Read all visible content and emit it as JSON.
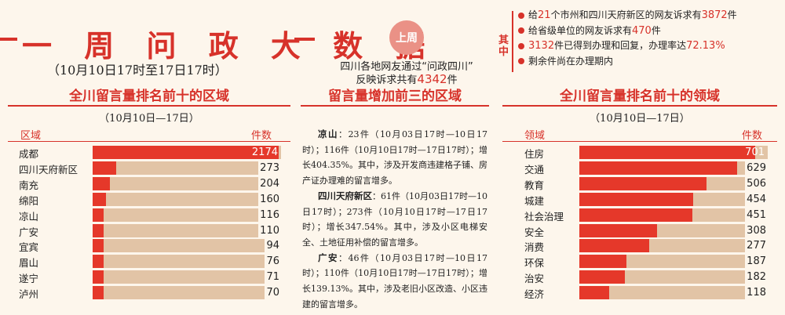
{
  "header": {
    "title": "一 周 问 政 大 数 据",
    "period": "（10月10日17时至17日17时）",
    "badge": "上周",
    "summary_line1": "四川各地网友通过“问政四川”",
    "summary_prefix": "反映诉求共有",
    "summary_total": "4342",
    "summary_suffix": "件",
    "qizhong": "其中",
    "bullets": [
      {
        "pre": "给",
        "num": "21",
        "mid": "个市州和四川天府新区的网友诉求有",
        "num2": "3872",
        "post": "件"
      },
      {
        "pre": "给省级单位的网友诉求有",
        "num": "470",
        "mid": "件",
        "num2": "",
        "post": ""
      },
      {
        "pre": "",
        "num": "3132",
        "mid": "件已得到办理和回复，办理率达",
        "num2": "72.13%",
        "post": ""
      },
      {
        "pre": "剩余件尚在办理期内",
        "num": "",
        "mid": "",
        "num2": "",
        "post": ""
      }
    ]
  },
  "left_panel": {
    "title": "全川留言量排名前十的区域",
    "date": "（10月10日—17日）",
    "col_label": "区域",
    "col_value": "件数"
  },
  "middle_panel": {
    "title": "留言量增加前三的区域",
    "paragraphs": [
      {
        "place": "凉山",
        "text": "：23件（10月03日17时—10日17时）；116件（10月10日17时—17日17时）；增长404.35%。其中，涉及开发商违建格子铺、房产证办理难的留言增多。"
      },
      {
        "place": "四川天府新区",
        "text": "：61件（10月03日17时—10日17时）；273件（10月10日17时—17日17时）；增长347.54%。其中，涉及小区电梯安全、土地征用补偿的留言增多。"
      },
      {
        "place": "广安",
        "text": "：46件（10月03日17时—10日17时）；110件（10月10日17时—17日17时）；增长139.13%。其中，涉及老旧小区改造、小区违建的留言增多。"
      }
    ]
  },
  "right_panel": {
    "title": "全川留言量排名前十的领域",
    "date": "（10月10日—17日）",
    "col_label": "领域",
    "col_value": "件数"
  },
  "chart_data": [
    {
      "type": "bar",
      "orientation": "horizontal",
      "title": "全川留言量排名前十的区域",
      "subtitle": "（10月10日—17日）",
      "xlabel": "件数",
      "ylabel": "区域",
      "categories": [
        "成都",
        "四川天府新区",
        "南充",
        "绵阳",
        "凉山",
        "广安",
        "宜宾",
        "眉山",
        "遂宁",
        "泸州"
      ],
      "values": [
        2174,
        273,
        204,
        160,
        116,
        110,
        94,
        76,
        71,
        70
      ],
      "xlim": [
        0,
        2200
      ],
      "colors": {
        "bar": "#e5382a",
        "track": "#e2c4a6"
      }
    },
    {
      "type": "bar",
      "orientation": "horizontal",
      "title": "全川留言量排名前十的领域",
      "subtitle": "（10月10日—17日）",
      "xlabel": "件数",
      "ylabel": "领域",
      "categories": [
        "住房",
        "交通",
        "教育",
        "城建",
        "社会治理",
        "安全",
        "消费",
        "环保",
        "治安",
        "经济"
      ],
      "values": [
        701,
        629,
        506,
        454,
        451,
        308,
        277,
        187,
        182,
        118
      ],
      "xlim": [
        0,
        750
      ],
      "colors": {
        "bar": "#e5382a",
        "track": "#e2c4a6"
      }
    }
  ]
}
